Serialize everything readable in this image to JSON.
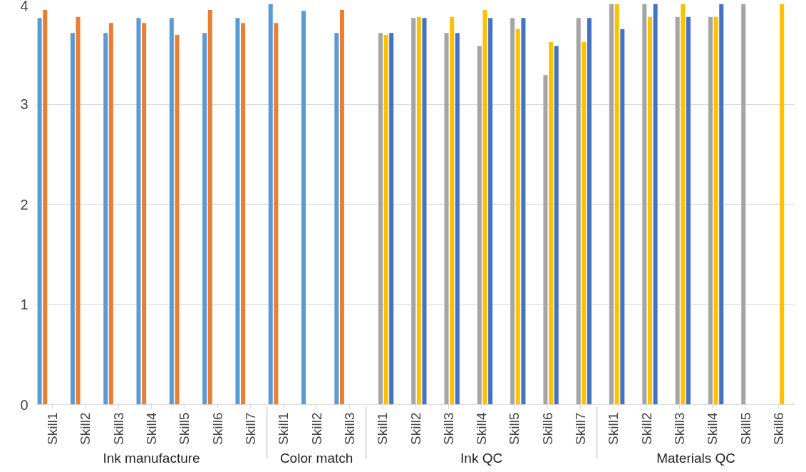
{
  "chart_data": {
    "type": "bar",
    "categories": [
      "Skill1",
      "Skill2",
      "Skill3",
      "Skill4",
      "Skill5",
      "Skill6",
      "Skill7",
      "Skill1",
      "Skill2",
      "Skill3",
      "Skill1",
      "Skill2",
      "Skill3",
      "Skill4",
      "Skill5",
      "Skill6",
      "Skill7",
      "Skill1",
      "Skill2",
      "Skill3",
      "Skill4",
      "Skill5",
      "Skill6"
    ],
    "annotations": [
      "Ink manufacture",
      "Color match",
      "Ink QC",
      "Materials QC"
    ],
    "series": [
      {
        "color": "#5b9bd5",
        "values": [
          3.86,
          3.71,
          3.71,
          3.86,
          3.86,
          3.71,
          3.86,
          4.0,
          3.93,
          3.71,
          null,
          null,
          null,
          null,
          null,
          null,
          null,
          null,
          null,
          null,
          null,
          null,
          null
        ]
      },
      {
        "color": "#ed7d31",
        "values": [
          3.94,
          3.87,
          3.81,
          3.81,
          3.69,
          3.94,
          3.81,
          3.81,
          null,
          3.94,
          null,
          null,
          null,
          null,
          null,
          null,
          null,
          null,
          null,
          null,
          null,
          null,
          null
        ]
      },
      {
        "color": "#a5a5a5",
        "values": [
          null,
          null,
          null,
          null,
          null,
          null,
          null,
          null,
          null,
          null,
          3.71,
          3.86,
          3.71,
          3.58,
          3.86,
          3.29,
          3.86,
          4.0,
          4.0,
          3.87,
          3.87,
          4.0,
          null
        ]
      },
      {
        "color": "#ffc000",
        "values": [
          null,
          null,
          null,
          null,
          null,
          null,
          null,
          null,
          null,
          null,
          3.69,
          3.87,
          3.87,
          3.94,
          3.75,
          3.62,
          3.62,
          4.0,
          3.87,
          4.0,
          3.87,
          null,
          4.0
        ]
      },
      {
        "color": "#4472c4",
        "values": [
          null,
          null,
          null,
          null,
          null,
          null,
          null,
          null,
          null,
          null,
          3.71,
          3.86,
          3.71,
          3.86,
          3.86,
          3.58,
          3.86,
          3.75,
          4.0,
          3.87,
          4.0,
          null,
          null
        ]
      }
    ],
    "ylim": [
      0,
      4
    ],
    "yticks": [
      0,
      1,
      2,
      3,
      4
    ],
    "grid": "y"
  }
}
